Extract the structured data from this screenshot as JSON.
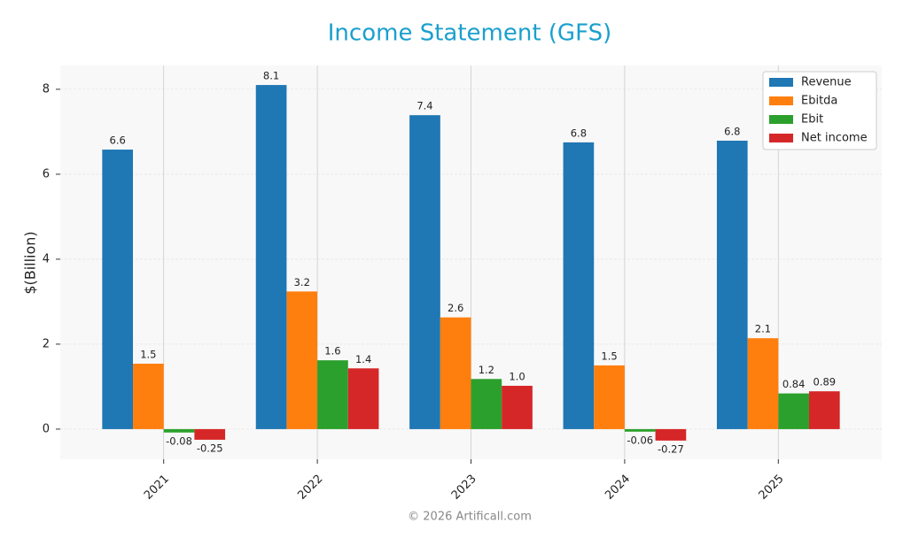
{
  "chart_data": {
    "type": "bar",
    "title": "Income Statement (GFS)",
    "ylabel": "$(Billion)",
    "categories": [
      "2021",
      "2022",
      "2023",
      "2024",
      "2025"
    ],
    "series": [
      {
        "name": "Revenue",
        "color": "#1f77b4",
        "values": [
          6.58,
          8.1,
          7.39,
          6.75,
          6.79
        ],
        "value_labels": [
          "6.6",
          "8.1",
          "7.4",
          "6.8",
          "6.8"
        ]
      },
      {
        "name": "Ebitda",
        "color": "#ff7f0e",
        "values": [
          1.54,
          3.24,
          2.63,
          1.5,
          2.14
        ],
        "value_labels": [
          "1.5",
          "3.2",
          "2.6",
          "1.5",
          "2.1"
        ]
      },
      {
        "name": "Ebit",
        "color": "#2ca02c",
        "values": [
          -0.08,
          1.62,
          1.18,
          -0.06,
          0.84
        ],
        "value_labels": [
          "-0.08",
          "1.6",
          "1.2",
          "-0.06",
          "0.84"
        ]
      },
      {
        "name": "Net income",
        "color": "#d62728",
        "values": [
          -0.25,
          1.43,
          1.02,
          -0.27,
          0.89
        ],
        "value_labels": [
          "-0.25",
          "1.4",
          "1.0",
          "-0.27",
          "0.89"
        ]
      }
    ],
    "ylim": [
      -0.71,
      8.56
    ],
    "yticks": [
      0,
      2,
      4,
      6,
      8
    ],
    "grid": true,
    "legend": "upper right",
    "footer": "© 2026 Artificall.com"
  }
}
